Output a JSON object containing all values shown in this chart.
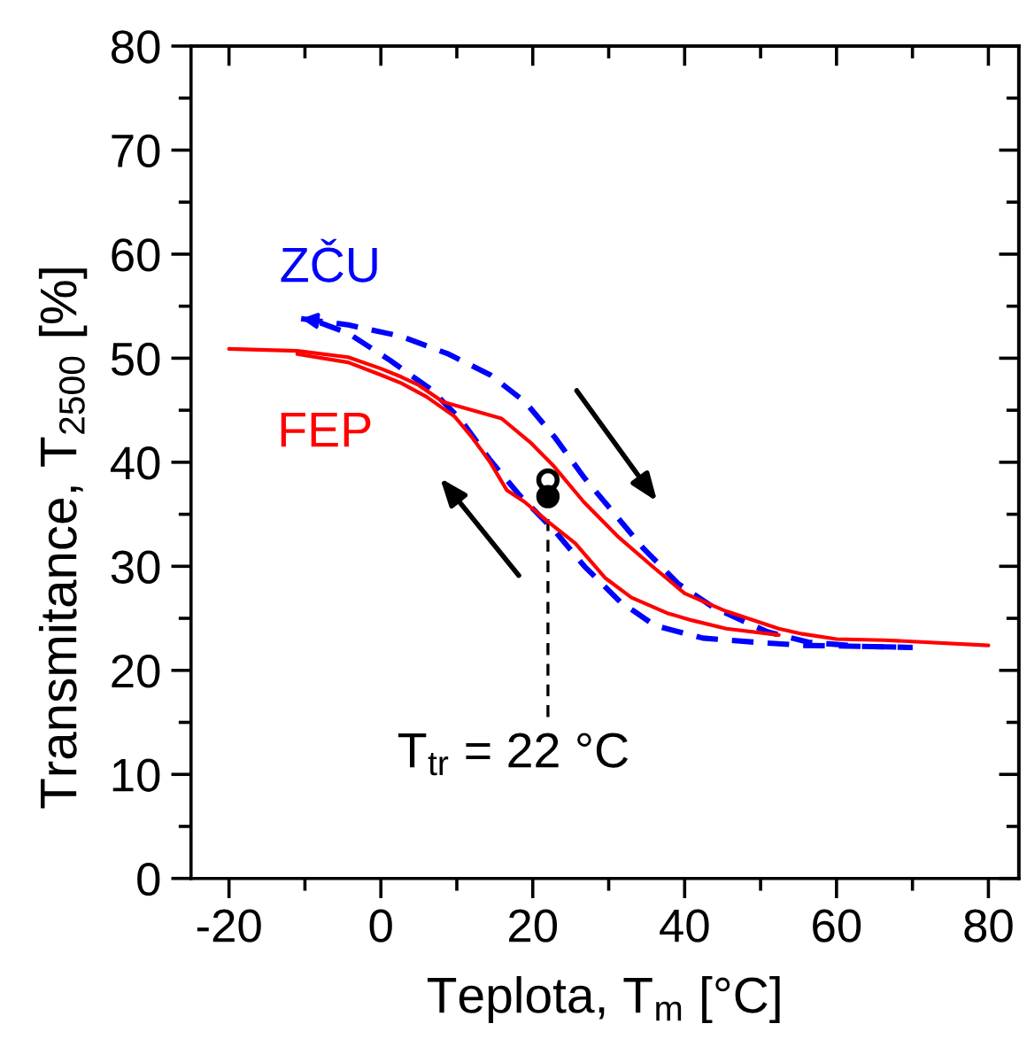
{
  "chart_data": {
    "type": "line",
    "xlabel": "Teplota, T$_{m}$ [°C]",
    "ylabel": "Transmitance, T$_{2500}$ [%]",
    "xlim": [
      -25,
      84
    ],
    "xticks": [
      -20,
      {
        "value": -10,
        "label": null
      },
      0,
      {
        "value": 10,
        "label": null
      },
      20,
      {
        "value": 30,
        "label": null
      },
      40,
      {
        "value": 50,
        "label": null
      },
      60,
      {
        "value": 70,
        "label": null
      },
      80
    ],
    "ylim": [
      0,
      80
    ],
    "yticks": [
      0,
      {
        "value": 5,
        "label": null
      },
      10,
      {
        "value": 15,
        "label": null
      },
      20,
      {
        "value": 25,
        "label": null
      },
      30,
      {
        "value": 35,
        "label": null
      },
      40,
      {
        "value": 45,
        "label": null
      },
      50,
      {
        "value": 55,
        "label": null
      },
      60,
      {
        "value": 65,
        "label": null
      },
      70,
      {
        "value": 75,
        "label": null
      },
      80
    ],
    "grid": false,
    "series": [
      {
        "name": "ZČU",
        "color": "#0000ff",
        "line_style": "dashed",
        "x": [
          -10.5,
          -4.3,
          2.7,
          8.9,
          14.4,
          19,
          22.9,
          26.8,
          30.7,
          34.6,
          39.2,
          43.9,
          50.9,
          56.3,
          63.3,
          70
        ],
        "values": [
          53.8,
          53.2,
          52.1,
          50.4,
          48.4,
          45.8,
          42.4,
          38.5,
          35.1,
          31.7,
          28.3,
          26.0,
          23.7,
          22.7,
          22.3,
          22.2
        ]
      },
      {
        "color": "#0000ff",
        "line_style": "dashed",
        "x": [
          -8,
          -4.3,
          1.2,
          6.6,
          10.5,
          14.4,
          18.3,
          22.9,
          26.8,
          31.5,
          36.1,
          42.4,
          49.3,
          55.6,
          63.3,
          70
        ],
        "values": [
          53.4,
          52.4,
          49.8,
          47.0,
          44.1,
          40.2,
          36.8,
          33.4,
          30.0,
          26.6,
          24.3,
          23.1,
          22.7,
          22.4,
          22.3,
          22.2
        ]
      },
      {
        "name": "FEP",
        "color": "#ff0000",
        "line_style": "solid",
        "x": [
          -20,
          -11,
          -4.3,
          0,
          2.7,
          5,
          8.2,
          12,
          15.9,
          19.7,
          22.8,
          26.7,
          31.3,
          35.9,
          40,
          45.4,
          52.4,
          55.5,
          60,
          66.4,
          80
        ],
        "values": [
          50.9,
          50.7,
          50.1,
          49.0,
          48.2,
          47.4,
          45.8,
          45.0,
          44.2,
          41.9,
          39.6,
          36.2,
          32.8,
          29.9,
          27.4,
          25.7,
          24.0,
          23.5,
          23.0,
          22.9,
          22.4
        ]
      },
      {
        "color": "#ff0000",
        "line_style": "solid",
        "x": [
          -11,
          -4.3,
          0,
          2.7,
          6,
          9.7,
          12,
          14.3,
          16.6,
          18.9,
          22,
          25.6,
          29.5,
          33,
          37.7,
          41,
          45.5,
          52.4
        ],
        "values": [
          50.4,
          49.6,
          48.4,
          47.6,
          46.3,
          44.4,
          42.4,
          40.1,
          37.3,
          36.2,
          34.3,
          32.2,
          28.9,
          27.0,
          25.5,
          24.8,
          24.0,
          23.4
        ]
      },
      {
        "type": "scatter",
        "marker": "circle",
        "colors": [
          "#ffffff",
          "#000000"
        ],
        "x": [
          22,
          22
        ],
        "values": [
          38.3,
          36.7
        ]
      }
    ],
    "ref_lines": [
      {
        "axis": "x",
        "value": 22,
        "label": "T$_{tr}$ = 22 °C",
        "color": "#000000",
        "line_style": "dashed"
      }
    ]
  }
}
